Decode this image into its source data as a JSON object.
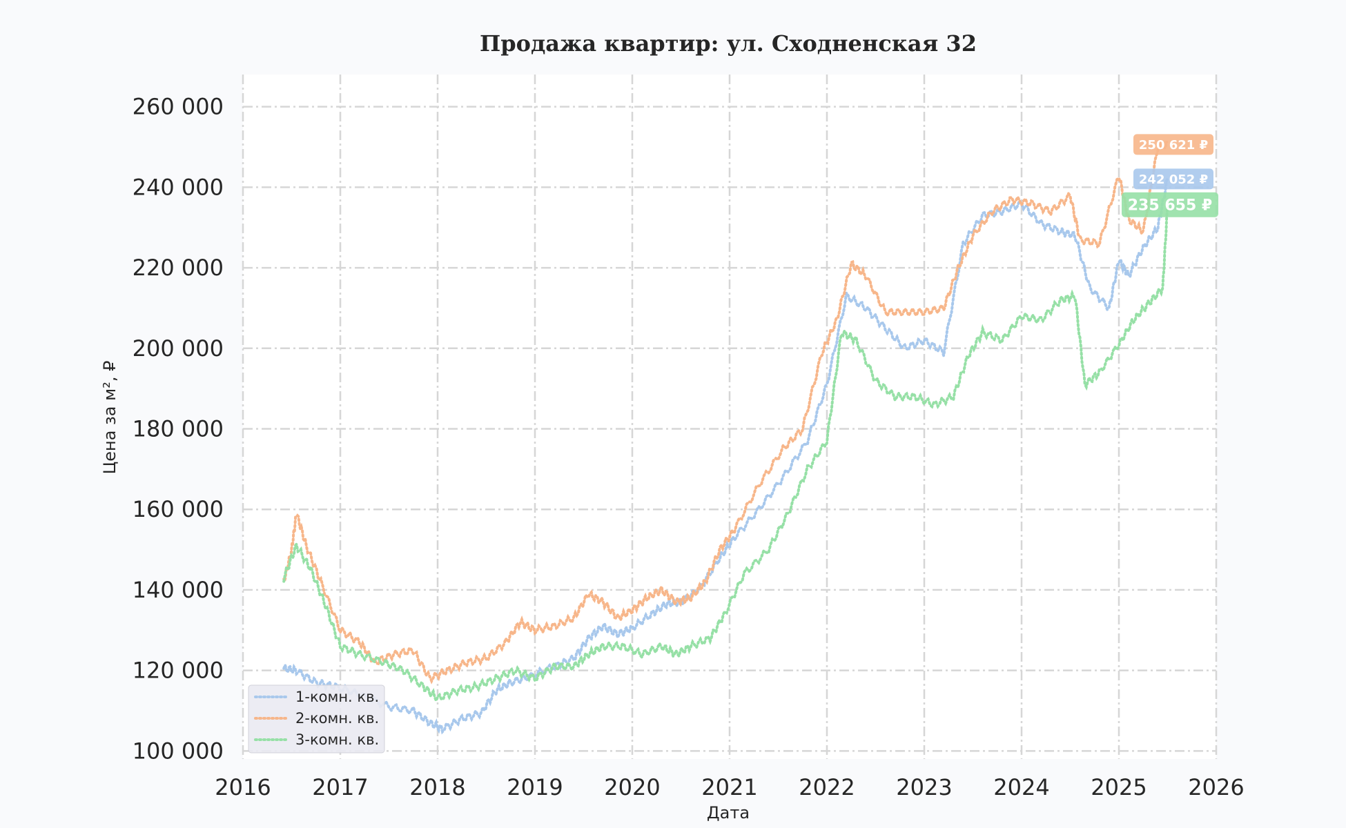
{
  "chart_data": {
    "type": "line",
    "title": "Продажа квартир: ул. Сходненская 32",
    "xlabel": "Дата",
    "ylabel": "Цена за м², ₽",
    "xlim": [
      2016,
      2026
    ],
    "ylim": [
      98000,
      268000
    ],
    "x_ticks": [
      "2016",
      "2017",
      "2018",
      "2019",
      "2020",
      "2021",
      "2022",
      "2023",
      "2024",
      "2025",
      "2026"
    ],
    "y_ticks": [
      "100 000",
      "120 000",
      "140 000",
      "160 000",
      "180 000",
      "200 000",
      "220 000",
      "240 000",
      "260 000"
    ],
    "y_tick_values": [
      100000,
      120000,
      140000,
      160000,
      180000,
      200000,
      220000,
      240000,
      260000
    ],
    "grid": true,
    "legend_position": "bottom-left",
    "line_style": "dotted",
    "series": [
      {
        "name": "1-комн. кв.",
        "color": "#a8c8ec",
        "last_label": "242 052 ₽",
        "last_value": 242052,
        "x": [
          2016.42,
          2016.55,
          2016.75,
          2016.95,
          2017.2,
          2017.5,
          2017.75,
          2017.92,
          2018.05,
          2018.25,
          2018.45,
          2018.6,
          2018.75,
          2018.95,
          2019.2,
          2019.4,
          2019.55,
          2019.7,
          2019.85,
          2020.0,
          2020.2,
          2020.35,
          2020.5,
          2020.7,
          2020.9,
          2021.05,
          2021.3,
          2021.55,
          2021.8,
          2022.0,
          2022.2,
          2022.4,
          2022.6,
          2022.8,
          2023.0,
          2023.2,
          2023.4,
          2023.6,
          2023.8,
          2024.0,
          2024.2,
          2024.4,
          2024.55,
          2024.7,
          2024.9,
          2025.0,
          2025.1,
          2025.25,
          2025.4,
          2025.5
        ],
        "values": [
          120500,
          120000,
          117000,
          116000,
          114000,
          111000,
          110000,
          107000,
          105500,
          108000,
          109500,
          115000,
          117000,
          118500,
          121000,
          123000,
          128000,
          131000,
          129000,
          130500,
          134000,
          136500,
          137000,
          140500,
          148000,
          153000,
          160000,
          168000,
          177000,
          191000,
          213000,
          210000,
          205000,
          200000,
          202000,
          199000,
          226000,
          233000,
          234000,
          236000,
          231000,
          229000,
          228000,
          215000,
          210000,
          222000,
          218000,
          225000,
          230000,
          242052
        ]
      },
      {
        "name": "2-комн. кв.",
        "color": "#f7b68a",
        "last_label": "250 621 ₽",
        "last_value": 250621,
        "x": [
          2016.42,
          2016.5,
          2016.55,
          2016.65,
          2016.8,
          2017.0,
          2017.2,
          2017.35,
          2017.55,
          2017.75,
          2017.92,
          2018.1,
          2018.3,
          2018.5,
          2018.7,
          2018.85,
          2019.0,
          2019.2,
          2019.4,
          2019.55,
          2019.7,
          2019.85,
          2020.0,
          2020.15,
          2020.3,
          2020.45,
          2020.6,
          2020.75,
          2020.9,
          2021.05,
          2021.3,
          2021.55,
          2021.75,
          2021.95,
          2022.1,
          2022.25,
          2022.4,
          2022.6,
          2022.8,
          2023.0,
          2023.2,
          2023.35,
          2023.5,
          2023.7,
          2023.9,
          2024.1,
          2024.3,
          2024.5,
          2024.6,
          2024.8,
          2025.0,
          2025.1,
          2025.25,
          2025.4,
          2025.5
        ],
        "values": [
          142000,
          150000,
          159000,
          151000,
          142000,
          130000,
          127000,
          122000,
          124000,
          125000,
          118000,
          120000,
          122000,
          123000,
          127000,
          132000,
          130000,
          131000,
          133000,
          139000,
          137000,
          133000,
          135000,
          138000,
          140000,
          137000,
          138000,
          142000,
          150000,
          155000,
          166000,
          175000,
          180000,
          199000,
          207000,
          221000,
          218000,
          209000,
          209000,
          209000,
          210000,
          220000,
          228000,
          234000,
          237000,
          236000,
          234000,
          238000,
          227000,
          226000,
          243000,
          232000,
          229000,
          250000,
          250621
        ]
      },
      {
        "name": "3-комн. кв.",
        "color": "#96e0a6",
        "last_label": "235 655 ₽",
        "last_value": 235655,
        "x": [
          2016.42,
          2016.55,
          2016.7,
          2016.85,
          2017.0,
          2017.2,
          2017.45,
          2017.65,
          2017.85,
          2018.0,
          2018.2,
          2018.4,
          2018.6,
          2018.8,
          2019.0,
          2019.2,
          2019.4,
          2019.55,
          2019.7,
          2019.9,
          2020.1,
          2020.3,
          2020.45,
          2020.6,
          2020.8,
          2020.95,
          2021.15,
          2021.4,
          2021.6,
          2021.8,
          2022.0,
          2022.15,
          2022.3,
          2022.5,
          2022.7,
          2022.9,
          2023.1,
          2023.3,
          2023.45,
          2023.6,
          2023.8,
          2024.0,
          2024.2,
          2024.4,
          2024.55,
          2024.65,
          2024.8,
          2025.0,
          2025.15,
          2025.3,
          2025.45,
          2025.5
        ],
        "values": [
          143000,
          151000,
          145000,
          136000,
          126000,
          124000,
          122000,
          120000,
          116000,
          113000,
          115000,
          116000,
          118000,
          120000,
          118000,
          121000,
          121000,
          124000,
          126000,
          126000,
          124000,
          126000,
          124000,
          126000,
          128000,
          134000,
          144000,
          150000,
          159000,
          170000,
          177000,
          204000,
          202000,
          192000,
          188000,
          188000,
          186000,
          188000,
          198000,
          204000,
          202000,
          208000,
          207000,
          212000,
          213000,
          191000,
          194000,
          201000,
          207000,
          211000,
          215000,
          235655
        ]
      }
    ]
  }
}
